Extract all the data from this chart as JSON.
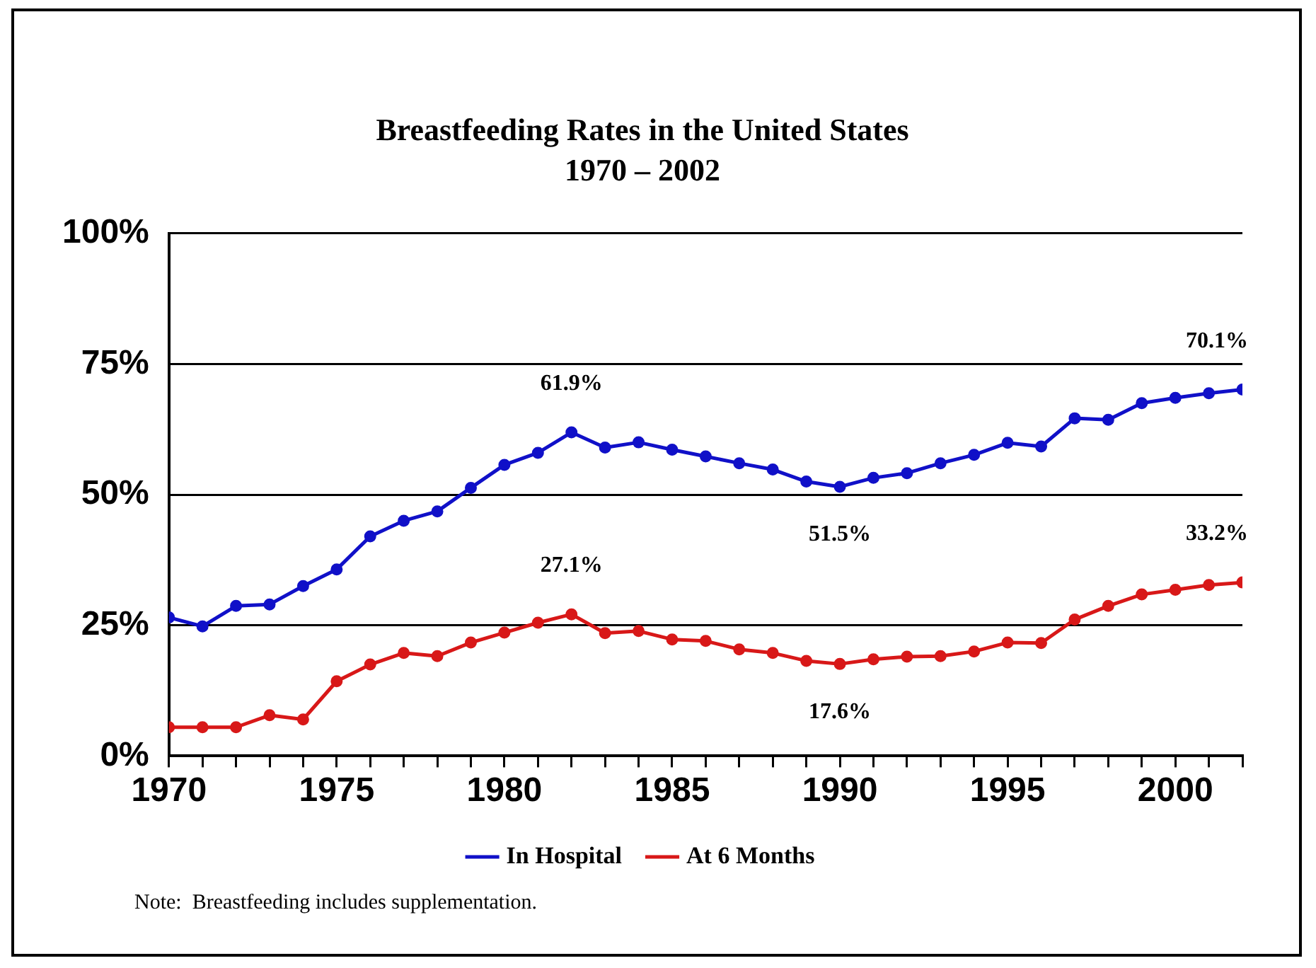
{
  "chart_data": {
    "type": "line",
    "title": "Breastfeeding Rates in the United States",
    "subtitle": "1970 – 2002",
    "x": [
      1970,
      1971,
      1972,
      1973,
      1974,
      1975,
      1976,
      1977,
      1978,
      1979,
      1980,
      1981,
      1982,
      1983,
      1984,
      1985,
      1986,
      1987,
      1988,
      1989,
      1990,
      1991,
      1992,
      1993,
      1994,
      1995,
      1996,
      1997,
      1998,
      1999,
      2000,
      2001,
      2002
    ],
    "series": [
      {
        "name": "In Hospital",
        "color": "#1010c8",
        "values": [
          26.5,
          24.8,
          28.7,
          29,
          32.5,
          35.7,
          42,
          45,
          46.8,
          51.3,
          55.7,
          58,
          61.9,
          59,
          60,
          58.6,
          57.3,
          56,
          54.8,
          52.5,
          51.5,
          53.2,
          54.1,
          56,
          57.6,
          59.9,
          59.2,
          64.6,
          64.3,
          67.5,
          68.5,
          69.4,
          70.1
        ]
      },
      {
        "name": "At 6 Months",
        "color": "#d81818",
        "values": [
          5.5,
          5.5,
          5.5,
          7.8,
          7,
          14.3,
          17.5,
          19.7,
          19.1,
          21.7,
          23.6,
          25.5,
          27.1,
          23.5,
          23.9,
          22.3,
          22,
          20.4,
          19.7,
          18.2,
          17.6,
          18.5,
          19,
          19.1,
          20,
          21.7,
          21.6,
          26.1,
          28.7,
          30.9,
          31.8,
          32.7,
          33.2
        ]
      }
    ],
    "xlim": [
      1970,
      2002
    ],
    "xticks": [
      1970,
      {
        "value": 1971,
        "label": null
      },
      {
        "value": 1972,
        "label": null
      },
      {
        "value": 1973,
        "label": null
      },
      {
        "value": 1974,
        "label": null
      },
      1975,
      {
        "value": 1976,
        "label": null
      },
      {
        "value": 1977,
        "label": null
      },
      {
        "value": 1978,
        "label": null
      },
      {
        "value": 1979,
        "label": null
      },
      1980,
      {
        "value": 1981,
        "label": null
      },
      {
        "value": 1982,
        "label": null
      },
      {
        "value": 1983,
        "label": null
      },
      {
        "value": 1984,
        "label": null
      },
      1985,
      {
        "value": 1986,
        "label": null
      },
      {
        "value": 1987,
        "label": null
      },
      {
        "value": 1988,
        "label": null
      },
      {
        "value": 1989,
        "label": null
      },
      1990,
      {
        "value": 1991,
        "label": null
      },
      {
        "value": 1992,
        "label": null
      },
      {
        "value": 1993,
        "label": null
      },
      {
        "value": 1994,
        "label": null
      },
      1995,
      {
        "value": 1996,
        "label": null
      },
      {
        "value": 1997,
        "label": null
      },
      {
        "value": 1998,
        "label": null
      },
      {
        "value": 1999,
        "label": null
      },
      2000,
      {
        "value": 2001,
        "label": null
      },
      {
        "value": 2002,
        "label": null
      }
    ],
    "ylim": [
      0,
      100
    ],
    "yticks": [
      {
        "value": 0,
        "label": "0%"
      },
      {
        "value": 25,
        "label": "25%"
      },
      {
        "value": 50,
        "label": "50%"
      },
      {
        "value": 75,
        "label": "75%"
      },
      {
        "value": 100,
        "label": "100%"
      }
    ],
    "grid": "y",
    "legend": "bottom",
    "marker": "circle",
    "line_style": "solid",
    "annotations": [
      {
        "text": "61.9%",
        "x": 1982,
        "y": 61.9
      },
      {
        "text": "51.5%",
        "x": 1990,
        "y": 51.5
      },
      {
        "text": "70.1%",
        "x": 2002,
        "y": 70.1
      },
      {
        "text": "27.1%",
        "x": 1982,
        "y": 27.1
      },
      {
        "text": "17.6%",
        "x": 1990,
        "y": 17.6
      },
      {
        "text": "33.2%",
        "x": 2002,
        "y": 33.2
      },
      "Note:  Breastfeeding includes supplementation."
    ]
  }
}
